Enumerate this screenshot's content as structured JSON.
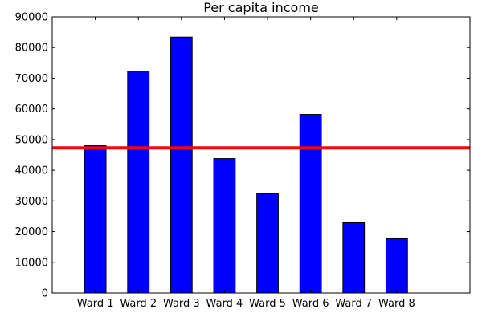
{
  "chart_data": {
    "type": "bar",
    "title": "Per capita income",
    "xlabel": "",
    "ylabel": "",
    "categories": [
      "Ward 1",
      "Ward 2",
      "Ward 3",
      "Ward 4",
      "Ward 5",
      "Ward 6",
      "Ward 7",
      "Ward 8"
    ],
    "values": [
      48000,
      72300,
      83400,
      43800,
      32300,
      58200,
      22900,
      17700
    ],
    "ylim": [
      0,
      90000
    ],
    "yticks": [
      0,
      10000,
      20000,
      30000,
      40000,
      50000,
      60000,
      70000,
      80000,
      90000
    ],
    "reference_line": 47300,
    "grid": false,
    "colors": {
      "bar_fill": "#0000ff",
      "bar_edge": "#000000",
      "reference_line": "#ff0000"
    }
  }
}
